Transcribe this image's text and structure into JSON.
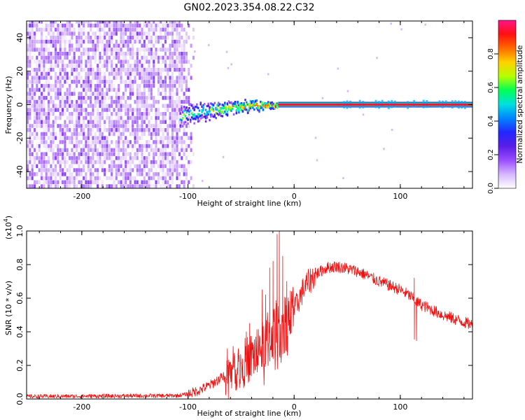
{
  "title": "GN02.2023.354.08.22.C32",
  "chart_data": [
    {
      "type": "heatmap",
      "xlabel": "Height of straight line (km)",
      "ylabel": "Frequency (Hz)",
      "xlim": [
        -252,
        168
      ],
      "ylim": [
        -50,
        50
      ],
      "x_ticks": [
        -200,
        -100,
        0,
        100
      ],
      "y_ticks": [
        -40,
        -20,
        0,
        20,
        40
      ],
      "colorbar": {
        "label": "Normalized spectral amplitude",
        "range": [
          0.0,
          1.0
        ],
        "ticks": [
          "0.0",
          "0.2",
          "0.4",
          "0.6",
          "0.8"
        ],
        "colormap": [
          "#ffffff",
          "#d6b8ff",
          "#9b4dff",
          "#5a1ee6",
          "#2326ff",
          "#0085ff",
          "#00e0e0",
          "#00ff55",
          "#b6ff00",
          "#ffd200",
          "#ff6a00",
          "#ff1010",
          "#ff1488"
        ]
      },
      "regions": [
        {
          "name": "broadband noise",
          "x_range": [
            -252,
            -95
          ],
          "y_range": [
            -50,
            50
          ],
          "amplitude": 0.12
        },
        {
          "name": "converging signal",
          "x_range": [
            -108,
            -15
          ],
          "center_freq": [
            -9,
            0
          ],
          "amplitude": 0.55
        },
        {
          "name": "carrier line",
          "x_range": [
            -15,
            168
          ],
          "frequency": 0,
          "amplitude": 0.95
        }
      ]
    },
    {
      "type": "line",
      "xlabel": "Height of straight line (km)",
      "ylabel": "SNR (10 * v/v)",
      "yscale_label": "(x10",
      "yscale_exp": "4",
      "xlim": [
        -252,
        168
      ],
      "ylim": [
        0,
        1.0
      ],
      "x_ticks": [
        -200,
        -100,
        0,
        100
      ],
      "y_ticks": [
        "0.0",
        "0.2",
        "0.4",
        "0.6",
        "0.8",
        "1.0"
      ],
      "line_color": "#ee1111",
      "envelope": {
        "x": [
          -252,
          -110,
          -100,
          -90,
          -80,
          -70,
          -60,
          -50,
          -40,
          -30,
          -20,
          -15,
          -10,
          0,
          5,
          10,
          20,
          30,
          40,
          60,
          80,
          100,
          110,
          115,
          120,
          140,
          168
        ],
        "y": [
          0.015,
          0.02,
          0.03,
          0.05,
          0.08,
          0.12,
          0.17,
          0.2,
          0.25,
          0.32,
          0.4,
          0.43,
          0.45,
          0.52,
          0.6,
          0.67,
          0.74,
          0.78,
          0.79,
          0.76,
          0.7,
          0.65,
          0.61,
          0.58,
          0.56,
          0.5,
          0.44
        ]
      },
      "spikes": [
        {
          "x": -63,
          "y": 0.3
        },
        {
          "x": -60,
          "y": 0.22
        },
        {
          "x": -45,
          "y": 0.4
        },
        {
          "x": -42,
          "y": 0.45
        },
        {
          "x": -30,
          "y": 0.65
        },
        {
          "x": -27,
          "y": 0.62
        },
        {
          "x": -23,
          "y": 0.78
        },
        {
          "x": -20,
          "y": 0.82
        },
        {
          "x": -16,
          "y": 0.98
        },
        {
          "x": -14,
          "y": 1.0
        },
        {
          "x": -11,
          "y": 0.85
        },
        {
          "x": -7,
          "y": 0.7
        },
        {
          "x": 113,
          "y": 0.72
        },
        {
          "x": 115,
          "y": 0.4
        }
      ]
    }
  ]
}
